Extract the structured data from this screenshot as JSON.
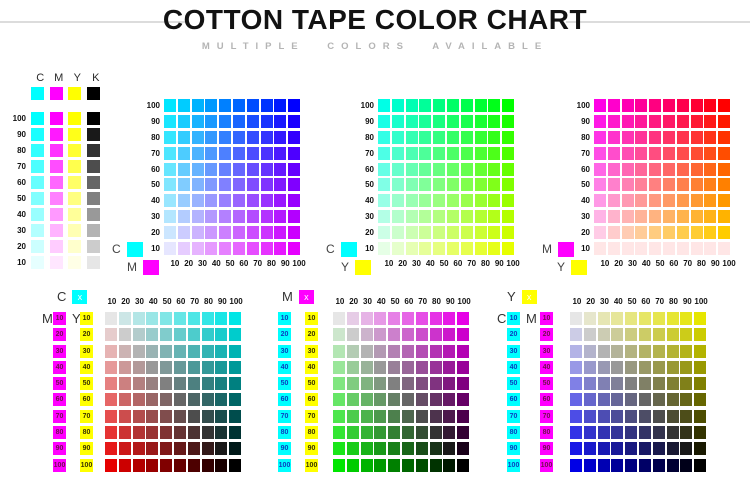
{
  "header": {
    "title": "COTTON TAPE COLOR CHART",
    "subtitle": "MULTIPLE COLORS AVAILABLE"
  },
  "channels": {
    "C": {
      "name": "cyan",
      "hex": "#00FFFF"
    },
    "M": {
      "name": "magenta",
      "hex": "#FF00FF"
    },
    "Y": {
      "name": "yellow",
      "hex": "#FFFF00"
    },
    "K": {
      "name": "black",
      "hex": "#000000"
    }
  },
  "key_block": {
    "letters": [
      "C",
      "M",
      "Y",
      "K"
    ],
    "tint_values": [
      100,
      90,
      80,
      70,
      60,
      50,
      40,
      30,
      20,
      10
    ]
  },
  "row_values_desc": [
    100,
    90,
    80,
    70,
    60,
    50,
    40,
    30,
    20,
    10
  ],
  "col_values_asc": [
    10,
    20,
    30,
    40,
    50,
    60,
    70,
    80,
    90,
    100
  ],
  "top_charts": [
    {
      "id": "c-m",
      "row_channel": "C",
      "col_channel": "M",
      "legend": [
        "C",
        "M"
      ]
    },
    {
      "id": "c-y",
      "row_channel": "C",
      "col_channel": "Y",
      "legend": [
        "C",
        "Y"
      ]
    },
    {
      "id": "m-y",
      "row_channel": "M",
      "col_channel": "Y",
      "legend": [
        "M",
        "Y"
      ],
      "flat_bottom_row": true
    }
  ],
  "bottom_charts": [
    {
      "id": "vary-c",
      "header_letter": "C",
      "header_mark": "x",
      "col_channel": "C",
      "rowA_channel": "M",
      "rowB_channel": "Y",
      "show_letters": true
    },
    {
      "id": "vary-m",
      "header_letter": "M",
      "header_mark": "x",
      "col_channel": "M",
      "rowA_channel": "C",
      "rowB_channel": "Y",
      "show_letters": false
    },
    {
      "id": "vary-y",
      "header_letter": "Y",
      "header_mark": "x",
      "col_channel": "Y",
      "rowA_channel": "C",
      "rowB_channel": "M",
      "show_letters": true
    }
  ]
}
